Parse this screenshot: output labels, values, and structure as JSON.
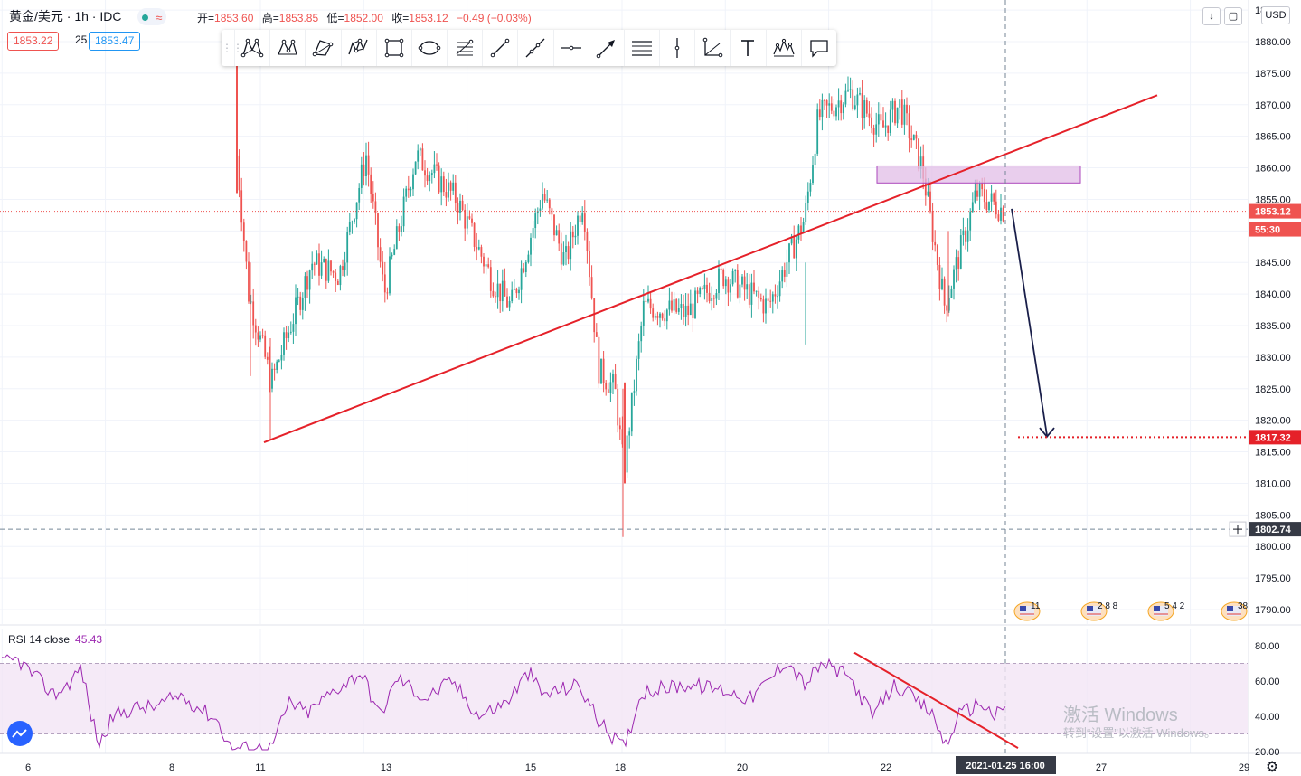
{
  "header": {
    "symbol": "黄金/美元 · 1h · IDC",
    "ohlc": [
      {
        "key": "开=",
        "value": "1853.60"
      },
      {
        "key": "高=",
        "value": "1853.85"
      },
      {
        "key": "低=",
        "value": "1852.00"
      },
      {
        "key": "收=",
        "value": "1853.12"
      },
      {
        "key": "",
        "value": "−0.49 (−0.03%)"
      }
    ],
    "bid": "1853.22",
    "spread": "25",
    "ask": "1853.47"
  },
  "currency": "USD",
  "rsi": {
    "label": "RSI 14 close",
    "value": "45.43"
  },
  "watermark": {
    "line1": "激活 Windows",
    "line2": "转到“设置”以激活 Windows。"
  },
  "colors": {
    "up": "#26a69a",
    "down": "#ef5350",
    "trend": "#e52129",
    "zone": "#e1bee7",
    "rsi": "#9c27b0",
    "rsi_band": "#f3e5f5",
    "arrow": "#1a1f4a"
  },
  "toolbar_icons": [
    "xabcd-pattern-icon",
    "cypher-pattern-icon",
    "abcd-pattern-icon",
    "three-drives-icon",
    "rectangle-icon",
    "ellipse-icon",
    "fib-icon",
    "trend-line-icon",
    "ray-icon",
    "horizontal-line-icon",
    "arrow-icon",
    "parallel-channel-icon",
    "vertical-line-icon",
    "angle-icon",
    "text-icon",
    "elliott-wave-icon",
    "callout-icon"
  ],
  "chart_data": {
    "type": "line",
    "title": "黄金/美元 · 1h · IDC",
    "price_axis": {
      "min": 1785,
      "max": 1890,
      "ticks": [
        "1880.00",
        "1875.00",
        "1870.00",
        "1865.00",
        "1860.00",
        "1855.00",
        "1845.00",
        "1840.00",
        "1835.00",
        "1830.00",
        "1825.00",
        "1820.00",
        "1815.00",
        "1810.00",
        "1805.00",
        "1800.00",
        "1795.00",
        "1790.00"
      ]
    },
    "time_axis": {
      "ticks": [
        "6",
        "8",
        "11",
        "13",
        "15",
        "18",
        "20",
        "22",
        "27",
        "29"
      ],
      "crosshair_label": "2021-01-25   16:00"
    },
    "close_path": [
      {
        "day": "11",
        "price": 1862
      },
      {
        "day": "11",
        "price": 1840
      },
      {
        "day": "11",
        "price": 1826
      },
      {
        "day": "12",
        "price": 1845
      },
      {
        "day": "12",
        "price": 1843
      },
      {
        "day": "13",
        "price": 1862
      },
      {
        "day": "13",
        "price": 1840
      },
      {
        "day": "14",
        "price": 1862
      },
      {
        "day": "14",
        "price": 1855
      },
      {
        "day": "15",
        "price": 1842
      },
      {
        "day": "15",
        "price": 1838
      },
      {
        "day": "15",
        "price": 1856
      },
      {
        "day": "16",
        "price": 1845
      },
      {
        "day": "17",
        "price": 1855
      },
      {
        "day": "17",
        "price": 1828
      },
      {
        "day": "18",
        "price": 1825
      },
      {
        "day": "18",
        "price": 1812
      },
      {
        "day": "18",
        "price": 1838
      },
      {
        "day": "19",
        "price": 1837
      },
      {
        "day": "19",
        "price": 1843
      },
      {
        "day": "20",
        "price": 1838
      },
      {
        "day": "20",
        "price": 1852
      },
      {
        "day": "21",
        "price": 1868
      },
      {
        "day": "21",
        "price": 1872
      },
      {
        "day": "22",
        "price": 1866
      },
      {
        "day": "22",
        "price": 1870
      },
      {
        "day": "23",
        "price": 1860
      },
      {
        "day": "23",
        "price": 1838
      },
      {
        "day": "24",
        "price": 1856
      },
      {
        "day": "25",
        "price": 1853.12
      }
    ],
    "price_labels": [
      {
        "value": "1853.12",
        "kind": "last"
      },
      {
        "value": "55:30",
        "kind": "countdown"
      },
      {
        "value": "1817.32",
        "kind": "target"
      },
      {
        "value": "1802.74",
        "kind": "crosshair"
      }
    ],
    "rsi": {
      "period": 14,
      "value": 45.43,
      "band": [
        30,
        70
      ],
      "ticks": [
        "80.00",
        "60.00",
        "40.00",
        "20.00"
      ],
      "ylim": [
        20,
        80
      ]
    },
    "calendar_events": [
      "11",
      "2 8 8",
      "5 4 2",
      "38"
    ],
    "grid": true
  }
}
